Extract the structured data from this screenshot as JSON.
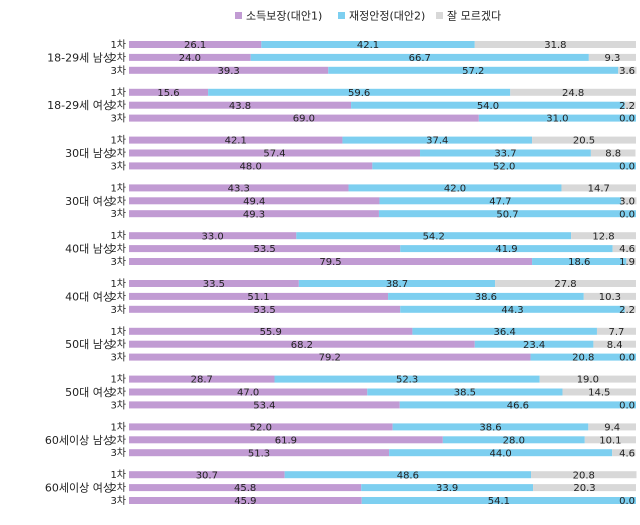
{
  "chart_data": {
    "type": "bar",
    "orientation": "horizontal",
    "stacked": true,
    "xlim": [
      0,
      100
    ],
    "legend": {
      "position": "top",
      "items": [
        {
          "name": "소득보장(대안1)",
          "color": "#c19bd3"
        },
        {
          "name": "재정안정(대안2)",
          "color": "#7dcff0"
        },
        {
          "name": "잘 모르겠다",
          "color": "#d8d8d8"
        }
      ]
    },
    "groups": [
      {
        "label": "18-29세 남성",
        "rounds": [
          "1차",
          "2차",
          "3차"
        ],
        "series": [
          [
            26.1,
            42.1,
            31.8
          ],
          [
            24.0,
            66.7,
            9.3
          ],
          [
            39.3,
            57.2,
            3.6
          ]
        ]
      },
      {
        "label": "18-29세 여성",
        "rounds": [
          "1차",
          "2차",
          "3차"
        ],
        "series": [
          [
            15.6,
            59.6,
            24.8
          ],
          [
            43.8,
            54.0,
            2.2
          ],
          [
            69.0,
            31.0,
            0.0
          ]
        ]
      },
      {
        "label": "30대 남성",
        "rounds": [
          "1차",
          "2차",
          "3차"
        ],
        "series": [
          [
            42.1,
            37.4,
            20.5
          ],
          [
            57.4,
            33.7,
            8.8
          ],
          [
            48.0,
            52.0,
            0.0
          ]
        ]
      },
      {
        "label": "30대 여성",
        "rounds": [
          "1차",
          "2차",
          "3차"
        ],
        "series": [
          [
            43.3,
            42.0,
            14.7
          ],
          [
            49.4,
            47.7,
            3.0
          ],
          [
            49.3,
            50.7,
            0.0
          ]
        ]
      },
      {
        "label": "40대 남성",
        "rounds": [
          "1차",
          "2차",
          "3차"
        ],
        "series": [
          [
            33.0,
            54.2,
            12.8
          ],
          [
            53.5,
            41.9,
            4.6
          ],
          [
            79.5,
            18.6,
            1.9
          ]
        ]
      },
      {
        "label": "40대 여성",
        "rounds": [
          "1차",
          "2차",
          "3차"
        ],
        "series": [
          [
            33.5,
            38.7,
            27.8
          ],
          [
            51.1,
            38.6,
            10.3
          ],
          [
            53.5,
            44.3,
            2.2
          ]
        ]
      },
      {
        "label": "50대 남성",
        "rounds": [
          "1차",
          "2차",
          "3차"
        ],
        "series": [
          [
            55.9,
            36.4,
            7.7
          ],
          [
            68.2,
            23.4,
            8.4
          ],
          [
            79.2,
            20.8,
            0.0
          ]
        ]
      },
      {
        "label": "50대 여성",
        "rounds": [
          "1차",
          "2차",
          "3차"
        ],
        "series": [
          [
            28.7,
            52.3,
            19.0
          ],
          [
            47.0,
            38.5,
            14.5
          ],
          [
            53.4,
            46.6,
            0.0
          ]
        ]
      },
      {
        "label": "60세이상 남성",
        "rounds": [
          "1차",
          "2차",
          "3차"
        ],
        "series": [
          [
            52.0,
            38.6,
            9.4
          ],
          [
            61.9,
            28.0,
            10.1
          ],
          [
            51.3,
            44.0,
            4.6
          ]
        ]
      },
      {
        "label": "60세이상 여성",
        "rounds": [
          "1차",
          "2차",
          "3차"
        ],
        "series": [
          [
            30.7,
            48.6,
            20.8
          ],
          [
            45.8,
            33.9,
            20.3
          ],
          [
            45.9,
            54.1,
            0.0
          ]
        ]
      }
    ]
  }
}
